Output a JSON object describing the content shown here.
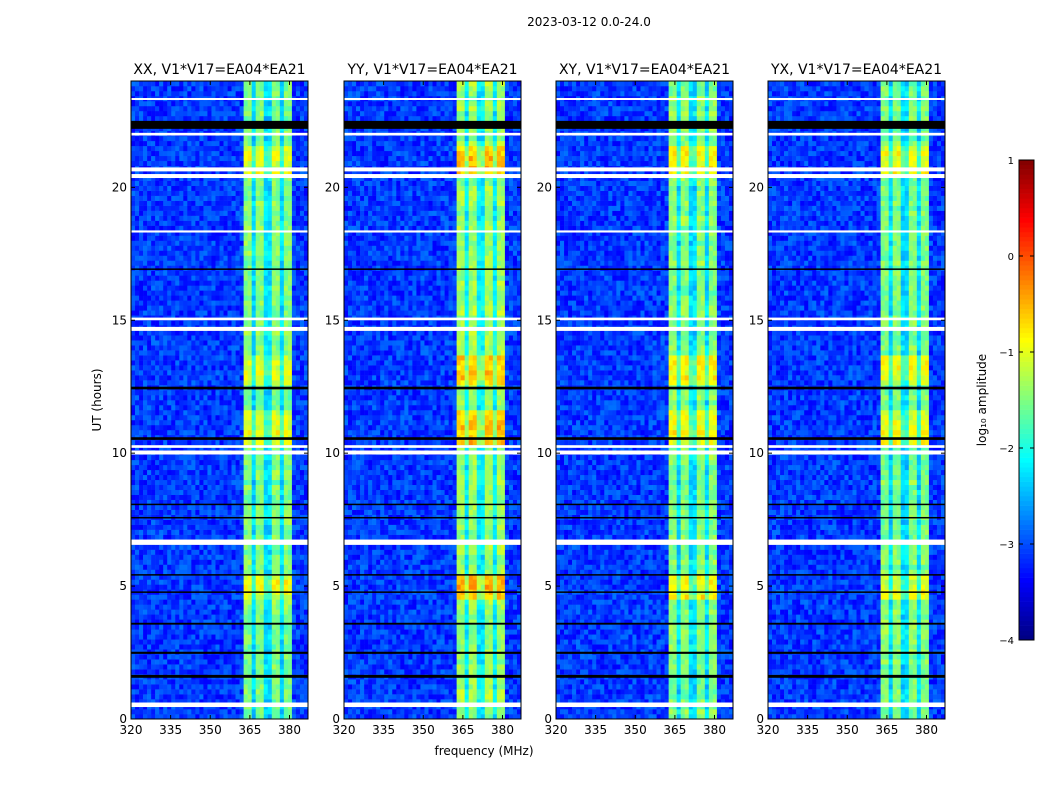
{
  "chart_data": {
    "type": "heatmap",
    "title": "2023-03-12 0.0-24.0",
    "xlabel": "frequency (MHz)",
    "ylabel": "UT (hours)",
    "xlim": [
      320,
      387
    ],
    "ylim": [
      0,
      24
    ],
    "xticks": [
      "320",
      "335",
      "350",
      "365",
      "380"
    ],
    "xtick_values": [
      320,
      335,
      350,
      365,
      380
    ],
    "yticks": [
      "0",
      "5",
      "10",
      "15",
      "20"
    ],
    "ytick_values": [
      0,
      5,
      10,
      15,
      20
    ],
    "colormap": "jet",
    "colorbar": {
      "label": "log₁₀ amplitude",
      "range": [
        -4,
        1
      ],
      "ticks": [
        "−4",
        "−3",
        "−2",
        "−1",
        "0",
        "1"
      ],
      "tick_values": [
        -4,
        -3,
        -2,
        -1,
        0,
        1
      ]
    },
    "background_level": -3.1,
    "band": {
      "start_mhz": 362,
      "end_mhz": 381,
      "level": -1.5,
      "gaps_mhz": [
        366.5,
        371.8,
        377.1
      ]
    },
    "bright_periods_hours": [
      [
        4.5,
        5.5
      ],
      [
        10.3,
        11.6
      ],
      [
        12.6,
        13.6
      ],
      [
        20.4,
        21.6
      ]
    ],
    "flagged_white_hours": [
      [
        0.45,
        0.62
      ],
      [
        6.55,
        6.75
      ],
      [
        9.95,
        10.1
      ],
      [
        10.2,
        10.3
      ],
      [
        14.6,
        14.75
      ],
      [
        15.0,
        15.1
      ],
      [
        18.3,
        18.38
      ],
      [
        20.35,
        20.5
      ],
      [
        20.6,
        20.75
      ],
      [
        21.95,
        22.05
      ],
      [
        23.3,
        23.36
      ]
    ],
    "flagged_black_hours": [
      [
        1.55,
        1.66
      ],
      [
        2.45,
        2.53
      ],
      [
        3.55,
        3.62
      ],
      [
        4.75,
        4.8
      ],
      [
        5.4,
        5.45
      ],
      [
        7.55,
        7.6
      ],
      [
        8.05,
        8.1
      ],
      [
        10.5,
        10.6
      ],
      [
        12.4,
        12.5
      ],
      [
        16.9,
        16.95
      ],
      [
        22.2,
        22.5
      ]
    ],
    "panels": [
      {
        "title": "XX, V1*V17=EA04*EA21",
        "gain": 0.0
      },
      {
        "title": "YY, V1*V17=EA04*EA21",
        "gain": 0.35
      },
      {
        "title": "XY, V1*V17=EA04*EA21",
        "gain": 0.1
      },
      {
        "title": "YX, V1*V17=EA04*EA21",
        "gain": 0.0
      }
    ]
  }
}
